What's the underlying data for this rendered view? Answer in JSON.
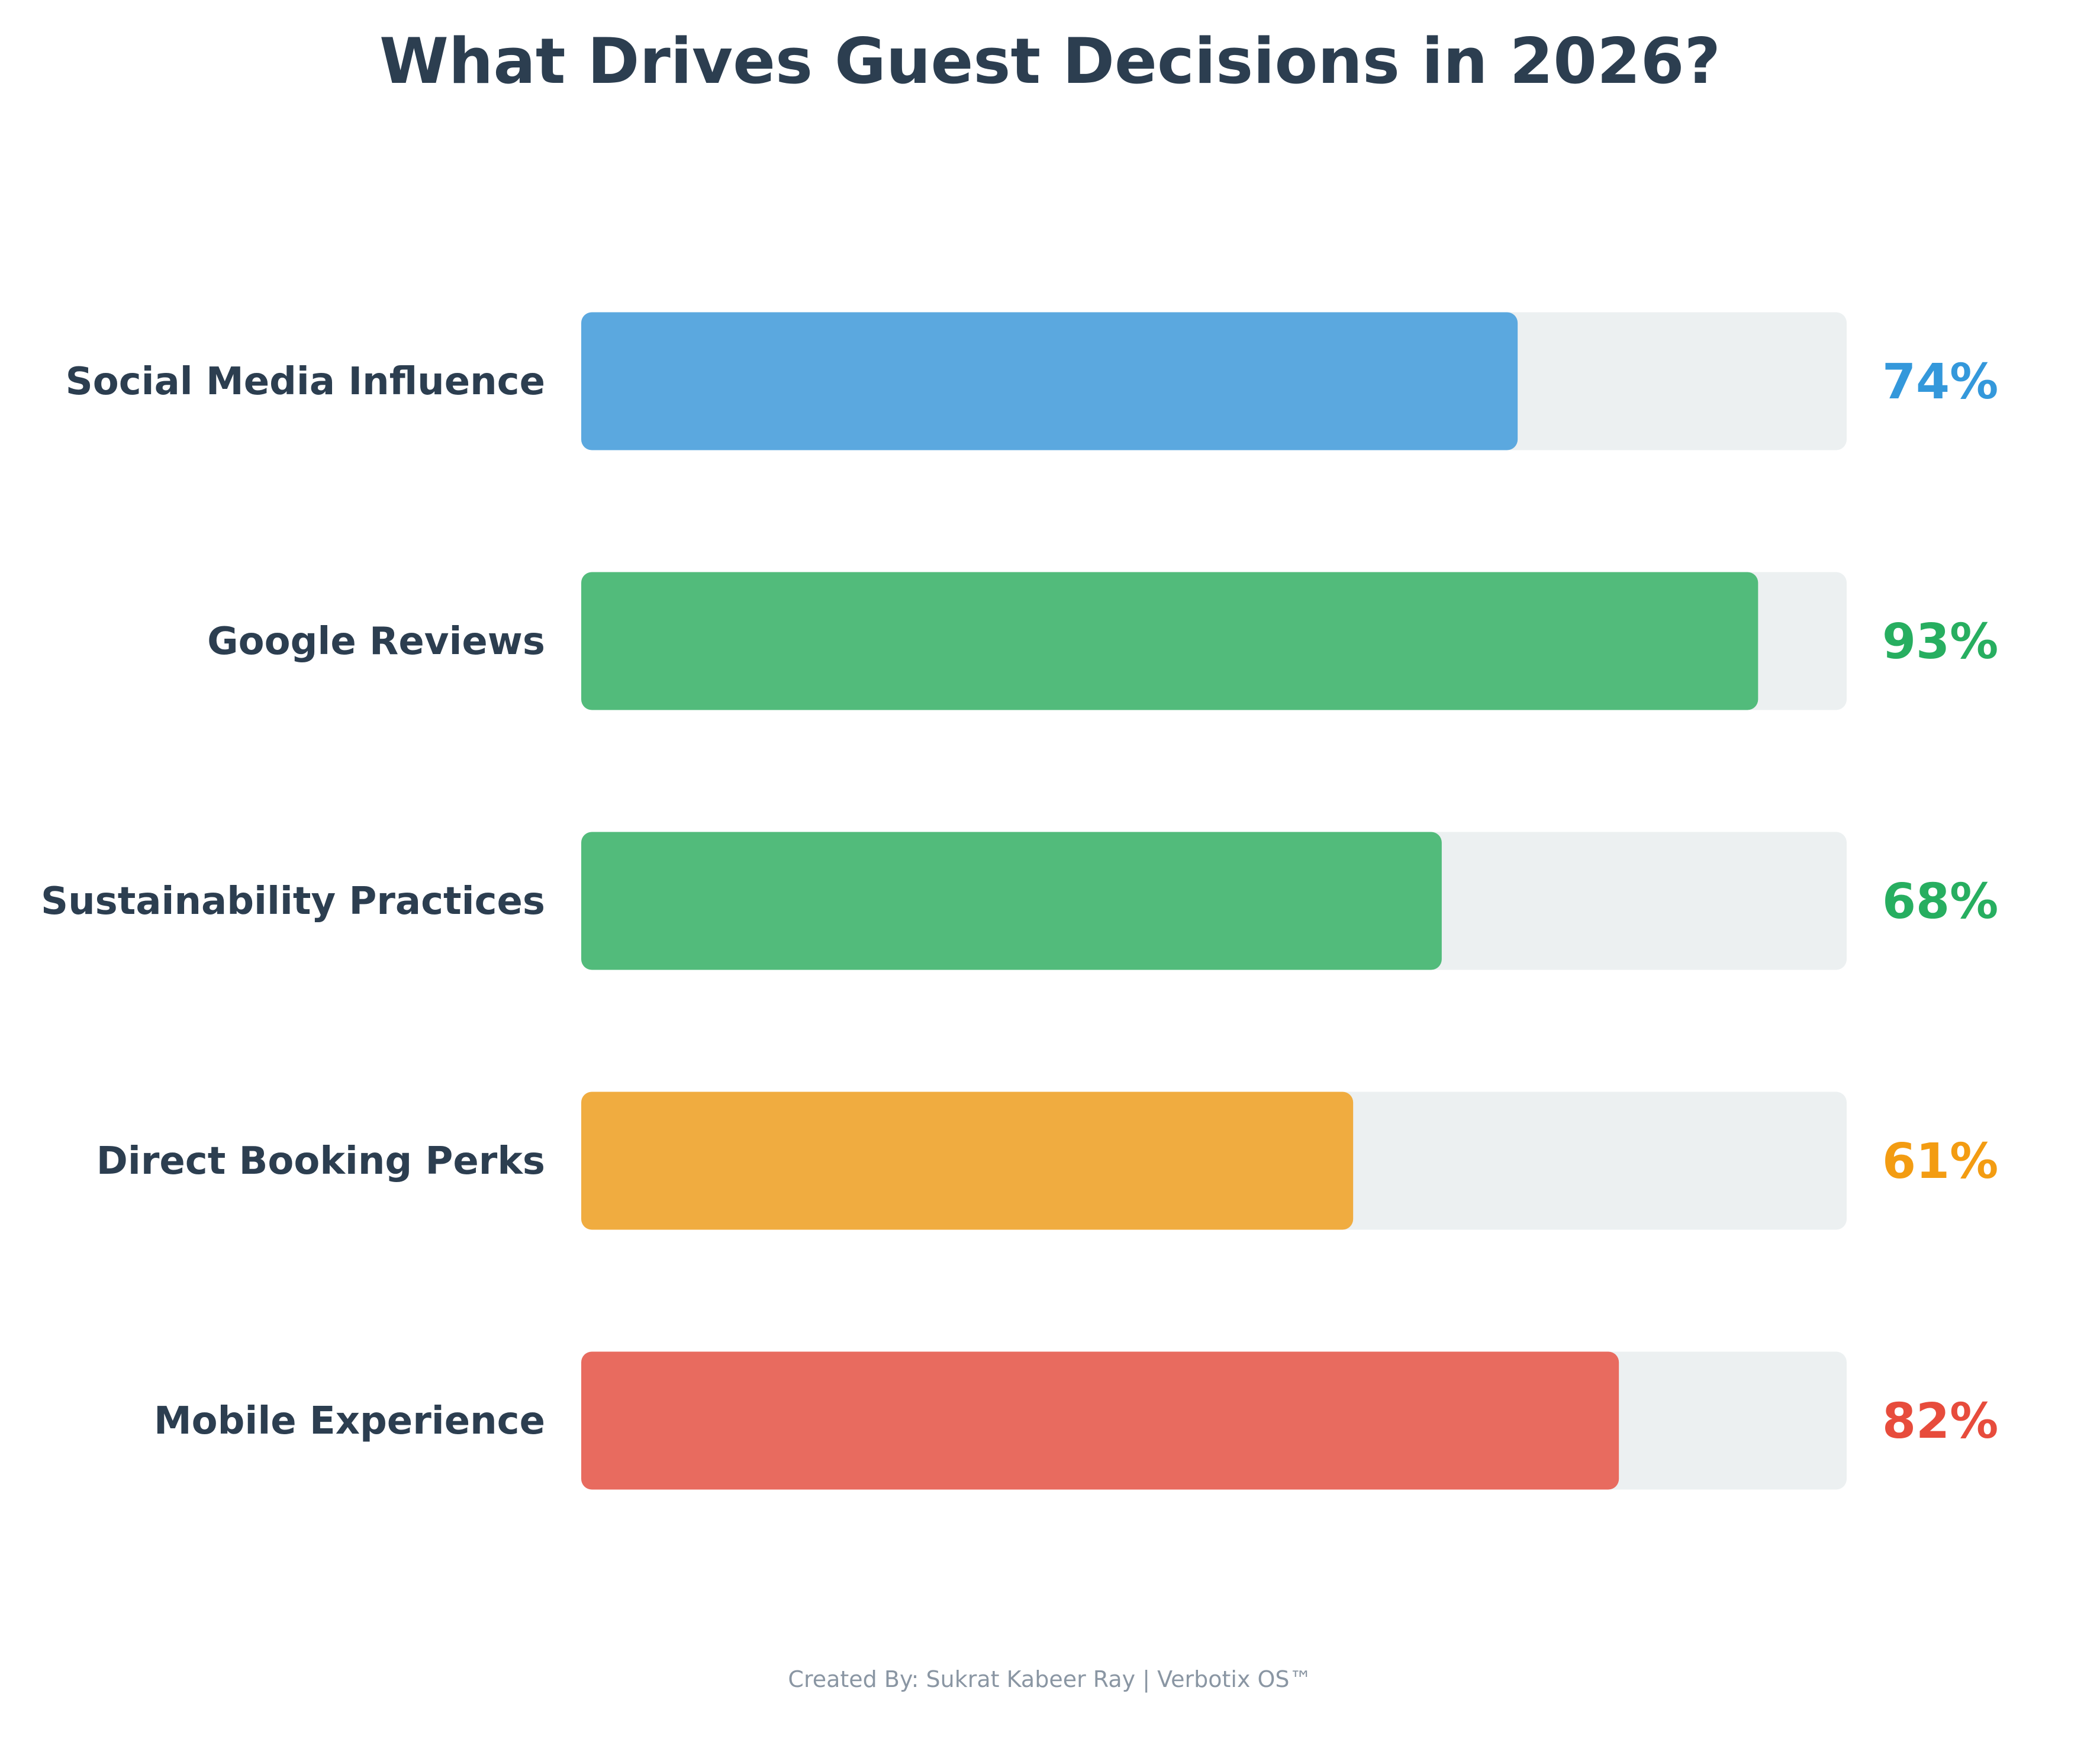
{
  "chart_data": {
    "type": "bar",
    "orientation": "horizontal",
    "title": "What Drives Guest Decisions in 2026?",
    "categories": [
      "Social Media Influence",
      "Google Reviews",
      "Sustainability Practices",
      "Direct Booking Perks",
      "Mobile Experience"
    ],
    "values": [
      74,
      93,
      68,
      61,
      82
    ],
    "value_labels": [
      "74%",
      "93%",
      "68%",
      "61%",
      "82%"
    ],
    "xlim": [
      0,
      100
    ],
    "bar_colors": [
      "#5BA8DF",
      "#52BB7B",
      "#52BB7B",
      "#F0AC40",
      "#E86B5F"
    ],
    "label_colors": [
      "#3498DB",
      "#27AE60",
      "#27AE60",
      "#F39C12",
      "#E74C3C"
    ],
    "track_color": "#ECF0F1",
    "grid": false,
    "legend": "none"
  },
  "footer": "Created By: Sukrat Kabeer Ray | Verbotix OS™"
}
